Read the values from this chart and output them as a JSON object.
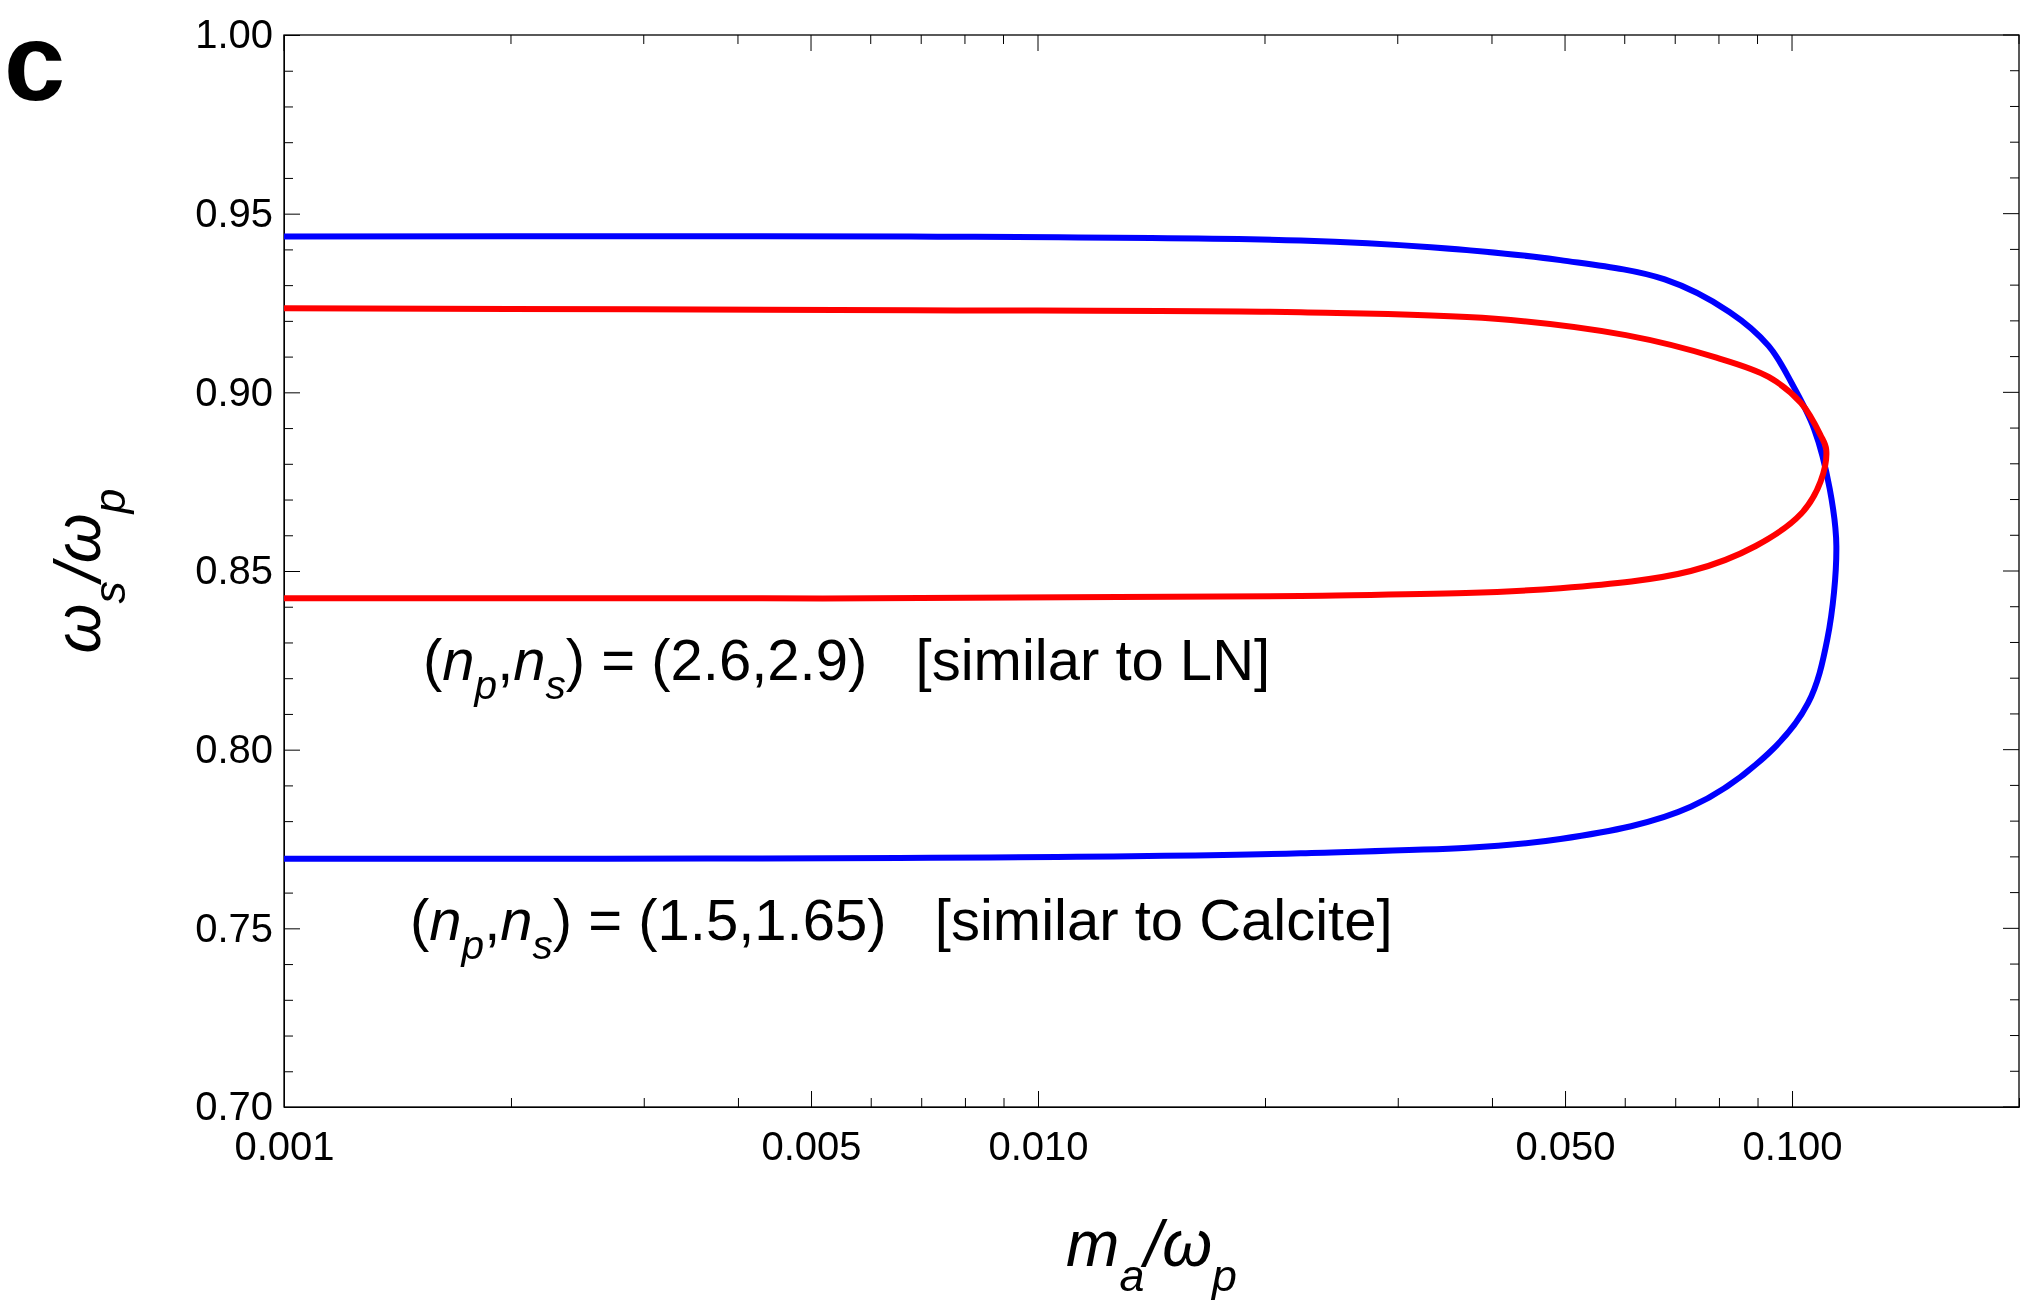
{
  "chart_data": {
    "type": "line",
    "xlabel": "m$_{a}$/ω$_{p}$",
    "ylabel": "ω$_{s}$/ω$_{p}$",
    "log": "x",
    "xlim": [
      0.001,
      0.2
    ],
    "ylim": [
      0.7,
      1.0
    ],
    "xticks": [
      0.001,
      {
        "value": 0.002,
        "label": null
      },
      {
        "value": 0.003,
        "label": null
      },
      {
        "value": 0.004,
        "label": null
      },
      0.005,
      {
        "value": 0.006,
        "label": null
      },
      {
        "value": 0.007,
        "label": null
      },
      {
        "value": 0.008,
        "label": null
      },
      {
        "value": 0.009,
        "label": null
      },
      {
        "value": 0.01,
        "label": "0.010"
      },
      {
        "value": 0.02,
        "label": null
      },
      {
        "value": 0.03,
        "label": null
      },
      {
        "value": 0.04,
        "label": null
      },
      {
        "value": 0.05,
        "label": "0.050"
      },
      {
        "value": 0.06,
        "label": null
      },
      {
        "value": 0.07,
        "label": null
      },
      {
        "value": 0.08,
        "label": null
      },
      {
        "value": 0.09,
        "label": null
      },
      {
        "value": 0.1,
        "label": "0.100"
      },
      {
        "value": 0.2,
        "label": null
      }
    ],
    "yticks": [
      {
        "value": 0.7,
        "label": "0.70"
      },
      {
        "value": 0.71,
        "label": null
      },
      {
        "value": 0.72,
        "label": null
      },
      {
        "value": 0.73,
        "label": null
      },
      {
        "value": 0.74,
        "label": null
      },
      {
        "value": 0.75,
        "label": "0.75"
      },
      {
        "value": 0.76,
        "label": null
      },
      {
        "value": 0.77,
        "label": null
      },
      {
        "value": 0.78,
        "label": null
      },
      {
        "value": 0.79,
        "label": null
      },
      {
        "value": 0.8,
        "label": "0.80"
      },
      {
        "value": 0.81,
        "label": null
      },
      {
        "value": 0.82,
        "label": null
      },
      {
        "value": 0.83,
        "label": null
      },
      {
        "value": 0.84,
        "label": null
      },
      {
        "value": 0.85,
        "label": "0.85"
      },
      {
        "value": 0.86,
        "label": null
      },
      {
        "value": 0.87,
        "label": null
      },
      {
        "value": 0.88,
        "label": null
      },
      {
        "value": 0.89,
        "label": null
      },
      {
        "value": 0.9,
        "label": "0.90"
      },
      {
        "value": 0.91,
        "label": null
      },
      {
        "value": 0.92,
        "label": null
      },
      {
        "value": 0.93,
        "label": null
      },
      {
        "value": 0.94,
        "label": null
      },
      {
        "value": 0.95,
        "label": "0.95"
      },
      {
        "value": 0.96,
        "label": null
      },
      {
        "value": 0.97,
        "label": null
      },
      {
        "value": 0.98,
        "label": null
      },
      {
        "value": 0.99,
        "label": null
      },
      {
        "value": 1.0,
        "label": "1.00"
      }
    ],
    "grid": false,
    "marker": "none",
    "line_style": "solid",
    "series": [
      {
        "color": "#0000ff",
        "x": [
          0.001,
          0.00678,
          0.0223,
          0.0332,
          0.0493,
          0.0678,
          0.0826,
          0.0931,
          0.1,
          0.107,
          0.1122,
          0.1145,
          0.1114,
          0.105,
          0.0931,
          0.0734,
          0.0493,
          0.0223,
          0.001
        ],
        "values": [
          0.9436,
          0.9436,
          0.9425,
          0.9406,
          0.937,
          0.9316,
          0.9225,
          0.913,
          0.9024,
          0.8897,
          0.873,
          0.857,
          0.831,
          0.813,
          0.799,
          0.784,
          0.775,
          0.771,
          0.7695
        ]
      },
      {
        "color": "#ff0000",
        "x": [
          0.001,
          0.00678,
          0.0223,
          0.0404,
          0.0602,
          0.0794,
          0.0931,
          0.1028,
          0.1091,
          0.111,
          0.1091,
          0.1028,
          0.0895,
          0.0734,
          0.0493,
          0.0223,
          0.001
        ],
        "values": [
          0.9235,
          0.923,
          0.9224,
          0.9206,
          0.916,
          0.9097,
          0.9043,
          0.897,
          0.888,
          0.884,
          0.875,
          0.866,
          0.857,
          0.85,
          0.8452,
          0.843,
          0.8424
        ]
      }
    ],
    "annotations": [
      "c",
      "(n$_{p}$,n$_{s}$) = (2.6,2.9)   [similar to LN]",
      "(n$_{p}$,n$_{s}$) = (1.5,1.65)   [similar to Calcite]"
    ]
  }
}
